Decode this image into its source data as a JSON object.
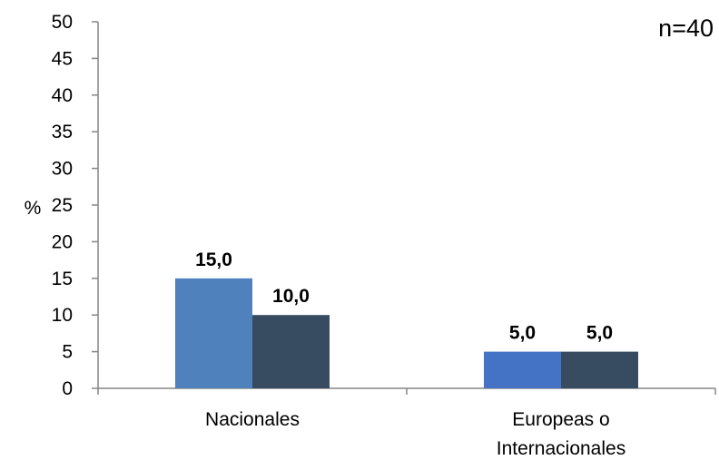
{
  "chart_data": {
    "type": "bar",
    "categories": [
      "Nacionales",
      "Europeas o Internacionales"
    ],
    "category_lines": [
      [
        "Nacionales"
      ],
      [
        "Europeas o",
        "Internacionales"
      ]
    ],
    "series": [
      {
        "values": [
          15.0,
          5.0
        ],
        "colors": [
          "#4f81bd",
          "#4472c4"
        ]
      },
      {
        "values": [
          10.0,
          5.0
        ],
        "colors": [
          "#374c61",
          "#374c61"
        ]
      }
    ],
    "data_labels": [
      [
        "15,0",
        "5,0"
      ],
      [
        "10,0",
        "5,0"
      ]
    ],
    "yticks": [
      "0",
      "5",
      "10",
      "15",
      "20",
      "25",
      "30",
      "35",
      "40",
      "45",
      "50"
    ],
    "ylim": [
      0,
      50
    ],
    "ylabel": "%",
    "xlabel": "",
    "title": "",
    "annotation": "n=40",
    "grid": false,
    "legend": "none"
  }
}
